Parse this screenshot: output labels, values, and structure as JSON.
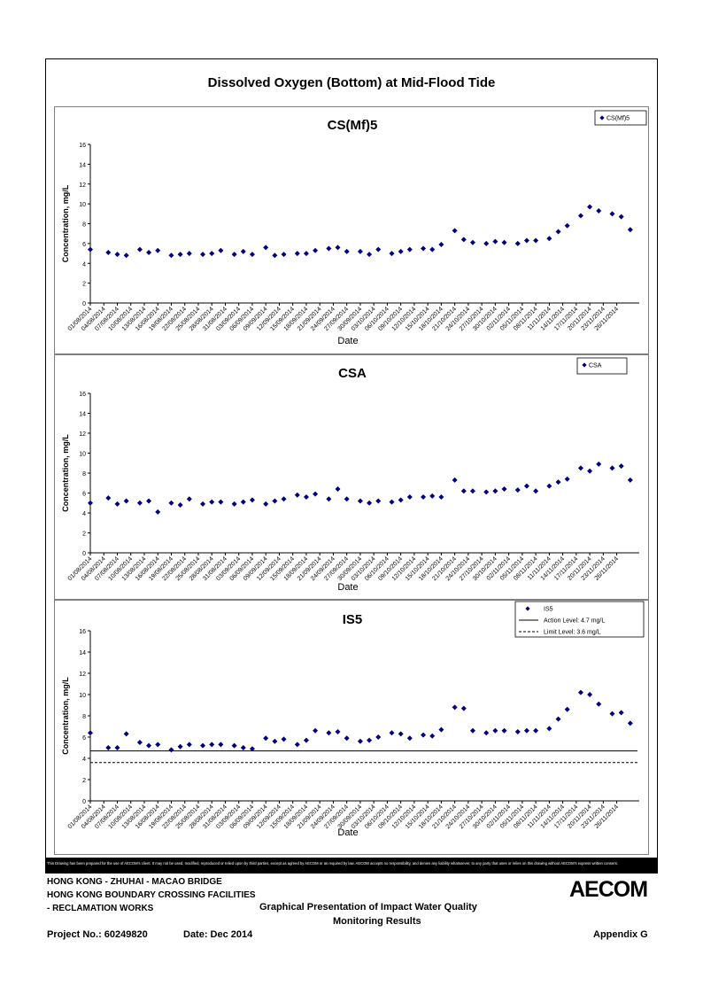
{
  "main_title": "Dissolved Oxygen (Bottom) at Mid-Flood Tide",
  "colors": {
    "marker": "#000080",
    "axis": "#000000",
    "frame": "#000000",
    "panel_border": "#7f7f7f"
  },
  "chart_data": [
    {
      "type": "scatter",
      "title": "CS(Mf)5",
      "xlabel": "Date",
      "ylabel": "Concentration, mg/L",
      "ylim": [
        0,
        16
      ],
      "y_ticks": [
        "0",
        "2",
        "4",
        "6",
        "8",
        "10",
        "12",
        "14",
        "16"
      ],
      "x_tick_labels": [
        "01/08/2014",
        "04/08/2014",
        "07/08/2014",
        "10/08/2014",
        "13/08/2014",
        "16/08/2014",
        "19/08/2014",
        "22/08/2014",
        "25/08/2014",
        "28/08/2014",
        "31/08/2014",
        "03/09/2014",
        "06/09/2014",
        "09/09/2014",
        "12/09/2014",
        "15/09/2014",
        "18/09/2014",
        "21/09/2014",
        "24/09/2014",
        "27/09/2014",
        "30/09/2014",
        "03/10/2014",
        "06/10/2014",
        "09/10/2014",
        "12/10/2014",
        "15/10/2014",
        "18/10/2014",
        "21/10/2014",
        "24/10/2014",
        "27/10/2014",
        "30/10/2014",
        "02/11/2014",
        "05/11/2014",
        "08/11/2014",
        "11/11/2014",
        "14/11/2014",
        "17/11/2014",
        "20/11/2014",
        "23/11/2014",
        "26/11/2014"
      ],
      "legend": [
        "CS(Mf)5"
      ],
      "legend_position": "top-right",
      "series": [
        {
          "name": "CS(Mf)5",
          "points": [
            [
              "01/08/2014",
              5.4
            ],
            [
              "05/08/2014",
              5.1
            ],
            [
              "07/08/2014",
              4.9
            ],
            [
              "09/08/2014",
              4.8
            ],
            [
              "12/08/2014",
              5.4
            ],
            [
              "14/08/2014",
              5.1
            ],
            [
              "16/08/2014",
              5.3
            ],
            [
              "19/08/2014",
              4.8
            ],
            [
              "21/08/2014",
              4.9
            ],
            [
              "23/08/2014",
              5.0
            ],
            [
              "26/08/2014",
              4.9
            ],
            [
              "28/08/2014",
              5.0
            ],
            [
              "30/08/2014",
              5.3
            ],
            [
              "02/09/2014",
              4.9
            ],
            [
              "04/09/2014",
              5.2
            ],
            [
              "06/09/2014",
              4.9
            ],
            [
              "09/09/2014",
              5.6
            ],
            [
              "11/09/2014",
              4.8
            ],
            [
              "13/09/2014",
              4.9
            ],
            [
              "16/09/2014",
              5.0
            ],
            [
              "18/09/2014",
              5.0
            ],
            [
              "20/09/2014",
              5.3
            ],
            [
              "23/09/2014",
              5.5
            ],
            [
              "25/09/2014",
              5.6
            ],
            [
              "27/09/2014",
              5.2
            ],
            [
              "30/09/2014",
              5.2
            ],
            [
              "02/10/2014",
              4.9
            ],
            [
              "04/10/2014",
              5.4
            ],
            [
              "07/10/2014",
              5.0
            ],
            [
              "09/10/2014",
              5.2
            ],
            [
              "11/10/2014",
              5.4
            ],
            [
              "14/10/2014",
              5.5
            ],
            [
              "16/10/2014",
              5.4
            ],
            [
              "18/10/2014",
              5.9
            ],
            [
              "21/10/2014",
              7.3
            ],
            [
              "23/10/2014",
              6.4
            ],
            [
              "25/10/2014",
              6.1
            ],
            [
              "28/10/2014",
              6.0
            ],
            [
              "30/10/2014",
              6.2
            ],
            [
              "01/11/2014",
              6.1
            ],
            [
              "04/11/2014",
              6.0
            ],
            [
              "06/11/2014",
              6.3
            ],
            [
              "08/11/2014",
              6.3
            ],
            [
              "11/11/2014",
              6.5
            ],
            [
              "13/11/2014",
              7.2
            ],
            [
              "15/11/2014",
              7.8
            ],
            [
              "18/11/2014",
              8.8
            ],
            [
              "20/11/2014",
              9.7
            ],
            [
              "22/11/2014",
              9.3
            ],
            [
              "25/11/2014",
              9.0
            ],
            [
              "27/11/2014",
              8.7
            ],
            [
              "29/11/2014",
              7.4
            ]
          ]
        }
      ]
    },
    {
      "type": "scatter",
      "title": "CSA",
      "xlabel": "Date",
      "ylabel": "Concentration, mg/L",
      "ylim": [
        0,
        16
      ],
      "y_ticks": [
        "0",
        "2",
        "4",
        "6",
        "8",
        "10",
        "12",
        "14",
        "16"
      ],
      "x_tick_labels": [
        "01/08/2014",
        "04/08/2014",
        "07/08/2014",
        "10/08/2014",
        "13/08/2014",
        "16/08/2014",
        "19/08/2014",
        "22/08/2014",
        "25/08/2014",
        "28/08/2014",
        "31/08/2014",
        "03/09/2014",
        "06/09/2014",
        "09/09/2014",
        "12/09/2014",
        "15/09/2014",
        "18/09/2014",
        "21/09/2014",
        "24/09/2014",
        "27/09/2014",
        "30/09/2014",
        "03/10/2014",
        "06/10/2014",
        "09/10/2014",
        "12/10/2014",
        "15/10/2014",
        "18/10/2014",
        "21/10/2014",
        "24/10/2014",
        "27/10/2014",
        "30/10/2014",
        "02/11/2014",
        "05/11/2014",
        "08/11/2014",
        "11/11/2014",
        "14/11/2014",
        "17/11/2014",
        "20/11/2014",
        "23/11/2014",
        "26/11/2014"
      ],
      "legend": [
        "CSA"
      ],
      "legend_position": "top-right",
      "series": [
        {
          "name": "CSA",
          "points": [
            [
              "01/08/2014",
              5.0
            ],
            [
              "05/08/2014",
              5.5
            ],
            [
              "07/08/2014",
              4.9
            ],
            [
              "09/08/2014",
              5.2
            ],
            [
              "12/08/2014",
              5.0
            ],
            [
              "14/08/2014",
              5.2
            ],
            [
              "16/08/2014",
              4.1
            ],
            [
              "19/08/2014",
              5.0
            ],
            [
              "21/08/2014",
              4.8
            ],
            [
              "23/08/2014",
              5.4
            ],
            [
              "26/08/2014",
              4.9
            ],
            [
              "28/08/2014",
              5.1
            ],
            [
              "30/08/2014",
              5.1
            ],
            [
              "02/09/2014",
              4.9
            ],
            [
              "04/09/2014",
              5.1
            ],
            [
              "06/09/2014",
              5.3
            ],
            [
              "09/09/2014",
              4.9
            ],
            [
              "11/09/2014",
              5.2
            ],
            [
              "13/09/2014",
              5.4
            ],
            [
              "16/09/2014",
              5.8
            ],
            [
              "18/09/2014",
              5.6
            ],
            [
              "20/09/2014",
              5.9
            ],
            [
              "23/09/2014",
              5.4
            ],
            [
              "25/09/2014",
              6.4
            ],
            [
              "27/09/2014",
              5.4
            ],
            [
              "30/09/2014",
              5.2
            ],
            [
              "02/10/2014",
              5.0
            ],
            [
              "04/10/2014",
              5.2
            ],
            [
              "07/10/2014",
              5.1
            ],
            [
              "09/10/2014",
              5.3
            ],
            [
              "11/10/2014",
              5.6
            ],
            [
              "14/10/2014",
              5.6
            ],
            [
              "16/10/2014",
              5.7
            ],
            [
              "18/10/2014",
              5.6
            ],
            [
              "21/10/2014",
              7.3
            ],
            [
              "23/10/2014",
              6.2
            ],
            [
              "25/10/2014",
              6.2
            ],
            [
              "28/10/2014",
              6.1
            ],
            [
              "30/10/2014",
              6.2
            ],
            [
              "01/11/2014",
              6.4
            ],
            [
              "04/11/2014",
              6.3
            ],
            [
              "06/11/2014",
              6.7
            ],
            [
              "08/11/2014",
              6.2
            ],
            [
              "11/11/2014",
              6.7
            ],
            [
              "13/11/2014",
              7.1
            ],
            [
              "15/11/2014",
              7.4
            ],
            [
              "18/11/2014",
              8.5
            ],
            [
              "20/11/2014",
              8.2
            ],
            [
              "22/11/2014",
              8.9
            ],
            [
              "25/11/2014",
              8.5
            ],
            [
              "27/11/2014",
              8.7
            ],
            [
              "29/11/2014",
              7.3
            ]
          ]
        }
      ]
    },
    {
      "type": "scatter",
      "title": "IS5",
      "xlabel": "Date",
      "ylabel": "Concentration, mg/L",
      "ylim": [
        0,
        16
      ],
      "y_ticks": [
        "0",
        "2",
        "4",
        "6",
        "8",
        "10",
        "12",
        "14",
        "16"
      ],
      "x_tick_labels": [
        "01/08/2014",
        "04/08/2014",
        "07/08/2014",
        "10/08/2014",
        "13/08/2014",
        "16/08/2014",
        "19/08/2014",
        "22/08/2014",
        "25/08/2014",
        "28/08/2014",
        "31/08/2014",
        "03/09/2014",
        "06/09/2014",
        "09/09/2014",
        "12/09/2014",
        "15/09/2014",
        "18/09/2014",
        "21/09/2014",
        "24/09/2014",
        "27/09/2014",
        "30/09/2014",
        "03/10/2014",
        "06/10/2014",
        "09/10/2014",
        "12/10/2014",
        "15/10/2014",
        "18/10/2014",
        "21/10/2014",
        "24/10/2014",
        "27/10/2014",
        "30/10/2014",
        "02/11/2014",
        "05/11/2014",
        "08/11/2014",
        "11/11/2014",
        "14/11/2014",
        "17/11/2014",
        "20/11/2014",
        "23/11/2014",
        "26/11/2014"
      ],
      "legend": [
        "IS5",
        "Action Level: 4.7 mg/L",
        "Limit Level: 3.6 mg/L"
      ],
      "legend_position": "top-right",
      "reference_lines": [
        {
          "name": "Action Level: 4.7 mg/L",
          "value": 4.7,
          "style": "solid"
        },
        {
          "name": "Limit Level: 3.6 mg/L",
          "value": 3.6,
          "style": "dashed"
        }
      ],
      "series": [
        {
          "name": "IS5",
          "points": [
            [
              "01/08/2014",
              6.4
            ],
            [
              "05/08/2014",
              5.0
            ],
            [
              "07/08/2014",
              5.0
            ],
            [
              "09/08/2014",
              6.3
            ],
            [
              "12/08/2014",
              5.5
            ],
            [
              "14/08/2014",
              5.2
            ],
            [
              "16/08/2014",
              5.3
            ],
            [
              "19/08/2014",
              4.8
            ],
            [
              "21/08/2014",
              5.1
            ],
            [
              "23/08/2014",
              5.3
            ],
            [
              "26/08/2014",
              5.2
            ],
            [
              "28/08/2014",
              5.3
            ],
            [
              "30/08/2014",
              5.3
            ],
            [
              "02/09/2014",
              5.2
            ],
            [
              "04/09/2014",
              5.0
            ],
            [
              "06/09/2014",
              4.9
            ],
            [
              "09/09/2014",
              5.9
            ],
            [
              "11/09/2014",
              5.6
            ],
            [
              "13/09/2014",
              5.8
            ],
            [
              "16/09/2014",
              5.3
            ],
            [
              "18/09/2014",
              5.7
            ],
            [
              "20/09/2014",
              6.6
            ],
            [
              "23/09/2014",
              6.4
            ],
            [
              "25/09/2014",
              6.5
            ],
            [
              "27/09/2014",
              5.9
            ],
            [
              "30/09/2014",
              5.6
            ],
            [
              "02/10/2014",
              5.7
            ],
            [
              "04/10/2014",
              6.0
            ],
            [
              "07/10/2014",
              6.4
            ],
            [
              "09/10/2014",
              6.3
            ],
            [
              "11/10/2014",
              5.9
            ],
            [
              "14/10/2014",
              6.2
            ],
            [
              "16/10/2014",
              6.1
            ],
            [
              "18/10/2014",
              6.7
            ],
            [
              "21/10/2014",
              8.8
            ],
            [
              "23/10/2014",
              8.7
            ],
            [
              "25/10/2014",
              6.6
            ],
            [
              "28/10/2014",
              6.4
            ],
            [
              "30/10/2014",
              6.6
            ],
            [
              "01/11/2014",
              6.6
            ],
            [
              "04/11/2014",
              6.5
            ],
            [
              "06/11/2014",
              6.6
            ],
            [
              "08/11/2014",
              6.6
            ],
            [
              "11/11/2014",
              6.8
            ],
            [
              "13/11/2014",
              7.7
            ],
            [
              "15/11/2014",
              8.6
            ],
            [
              "18/11/2014",
              10.2
            ],
            [
              "20/11/2014",
              10.0
            ],
            [
              "22/11/2014",
              9.1
            ],
            [
              "25/11/2014",
              8.2
            ],
            [
              "27/11/2014",
              8.3
            ],
            [
              "29/11/2014",
              7.3
            ]
          ]
        }
      ]
    }
  ],
  "disclaimer": "This Drawing has been prepared for the use of AECOM's client. It may not be used, modified, reproduced or relied upon by third parties, except as agreed by AECOM or as required by law. AECOM accepts no responsibility, and denies any liability whatsoever, to any party that uses or relies on this drawing without AECOM's express written consent.",
  "footer": {
    "project_line1": "HONG KONG - ZHUHAI - MACAO BRIDGE",
    "project_line2": "HONG KONG BOUNDARY CROSSING FACILITIES",
    "project_line3": "- RECLAMATION WORKS",
    "drawing_title_line1": "Graphical Presentation of Impact Water Quality",
    "drawing_title_line2": "Monitoring Results",
    "project_no": "Project No.: 60249820",
    "date": "Date: Dec 2014",
    "appendix": "Appendix G",
    "logo": "AECOM"
  }
}
